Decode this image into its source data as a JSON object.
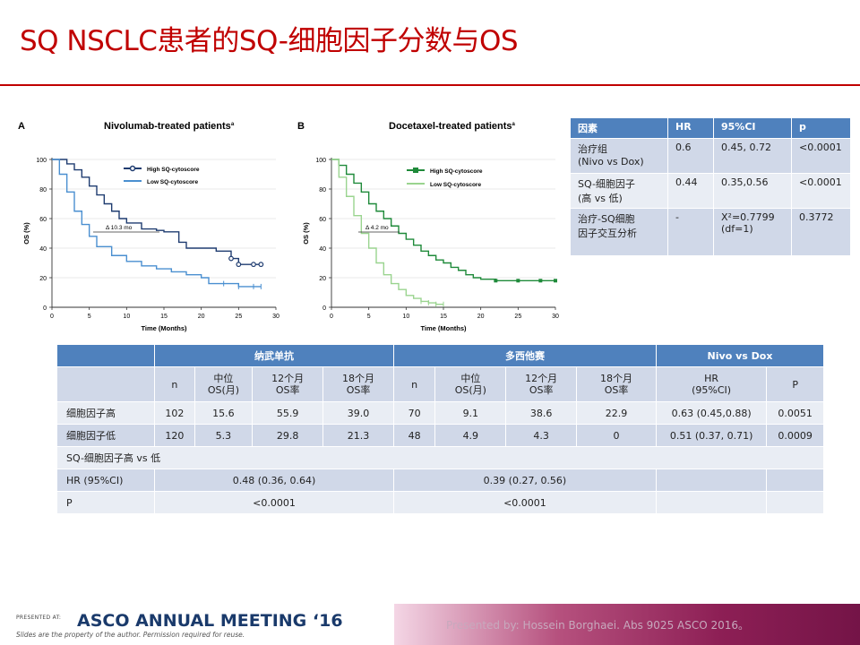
{
  "title": "SQ NSCLC患者的SQ-细胞因子分数与OS",
  "panel_a": {
    "letter": "A",
    "title": "Nivolumab-treated patients",
    "title_sup": "a",
    "legend_high": "High SQ-cytoscore",
    "legend_low": "Low SQ-cytoscore",
    "delta": "Δ 10.3 mo",
    "ylabel": "OS (%)",
    "xlabel": "Time (Months)",
    "yticks": [
      "100",
      "80",
      "60",
      "40",
      "20",
      "0"
    ],
    "xticks": [
      "0",
      "5",
      "10",
      "15",
      "20",
      "25",
      "30"
    ],
    "high_color": "#1f3c70",
    "low_color": "#4a8fd0"
  },
  "panel_b": {
    "letter": "B",
    "title": "Docetaxel-treated patients",
    "title_sup": "a",
    "legend_high": "High SQ-cytoscore",
    "legend_low": "Low SQ-cytoscore",
    "delta": "Δ 4.2 mo",
    "ylabel": "OS (%)",
    "xlabel": "Time (Months)",
    "yticks": [
      "100",
      "80",
      "60",
      "40",
      "20",
      "0"
    ],
    "xticks": [
      "0",
      "5",
      "10",
      "15",
      "20",
      "25",
      "30"
    ],
    "high_color": "#1f8a3a",
    "low_color": "#9ad48f"
  },
  "chart_data": [
    {
      "type": "line",
      "title": "Nivolumab-treated patients",
      "xlabel": "Time (Months)",
      "ylabel": "OS (%)",
      "xlim": [
        0,
        30
      ],
      "ylim": [
        0,
        100
      ],
      "series": [
        {
          "name": "High SQ-cytoscore",
          "x": [
            0,
            2,
            3,
            4,
            5,
            6,
            7,
            8,
            9,
            10,
            12,
            14,
            15,
            17,
            18,
            20,
            22,
            24,
            25,
            27,
            28
          ],
          "y": [
            100,
            97,
            93,
            88,
            82,
            76,
            70,
            65,
            60,
            57,
            53,
            52,
            51,
            44,
            40,
            40,
            38,
            33,
            29,
            29,
            29
          ]
        },
        {
          "name": "Low SQ-cytoscore",
          "x": [
            0,
            1,
            2,
            3,
            4,
            5,
            6,
            8,
            10,
            12,
            14,
            16,
            18,
            20,
            21,
            23,
            25,
            27,
            28
          ],
          "y": [
            100,
            90,
            78,
            65,
            56,
            48,
            41,
            35,
            31,
            28,
            26,
            24,
            22,
            20,
            16,
            16,
            14,
            14,
            14
          ]
        }
      ]
    },
    {
      "type": "line",
      "title": "Docetaxel-treated patients",
      "xlabel": "Time (Months)",
      "ylabel": "OS (%)",
      "xlim": [
        0,
        30
      ],
      "ylim": [
        0,
        100
      ],
      "series": [
        {
          "name": "High SQ-cytoscore",
          "x": [
            0,
            1,
            2,
            3,
            4,
            5,
            6,
            7,
            8,
            9,
            10,
            11,
            12,
            13,
            14,
            15,
            16,
            17,
            18,
            19,
            20,
            22,
            25,
            28,
            30
          ],
          "y": [
            100,
            96,
            90,
            84,
            78,
            70,
            65,
            60,
            55,
            50,
            46,
            42,
            38,
            35,
            32,
            30,
            27,
            25,
            22,
            20,
            19,
            18,
            18,
            18,
            18
          ]
        },
        {
          "name": "Low SQ-cytoscore",
          "x": [
            0,
            1,
            2,
            3,
            4,
            5,
            6,
            7,
            8,
            9,
            10,
            11,
            12,
            13,
            14,
            15
          ],
          "y": [
            100,
            88,
            75,
            62,
            50,
            40,
            30,
            22,
            16,
            12,
            8,
            6,
            4,
            3,
            2,
            2
          ]
        }
      ]
    }
  ],
  "right_table": {
    "headers": [
      "因素",
      "HR",
      "95%CI",
      "p"
    ],
    "rows": [
      {
        "factor": "治疗组\n(Nivo vs Dox)",
        "hr": "0.6",
        "ci": "0.45, 0.72",
        "p": "<0.0001"
      },
      {
        "factor": "SQ-细胞因子\n(高 vs 低)",
        "hr": "0.44",
        "ci": "0.35,0.56",
        "p": "<0.0001"
      },
      {
        "factor": "治疗-SQ细胞\n因子交互分析",
        "hr": "-",
        "ci": "X²=0.7799\n(df=1)",
        "p": "0.3772"
      }
    ]
  },
  "bottom_table": {
    "group_headers": [
      "纳武单抗",
      "多西他赛",
      "Nivo vs Dox"
    ],
    "sub_headers": [
      "n",
      "中位\nOS(月)",
      "12个月\nOS率",
      "18个月\nOS率",
      "n",
      "中位\nOS(月)",
      "12个月\nOS率",
      "18个月\nOS率",
      "HR\n(95%CI)",
      "P"
    ],
    "rows": [
      {
        "label": "细胞因子高",
        "cells": [
          "102",
          "15.6",
          "55.9",
          "39.0",
          "70",
          "9.1",
          "38.6",
          "22.9",
          "0.63 (0.45,0.88)",
          "0.0051"
        ]
      },
      {
        "label": "细胞因子低",
        "cells": [
          "120",
          "5.3",
          "29.8",
          "21.3",
          "48",
          "4.9",
          "4.3",
          "0",
          "0.51 (0.37, 0.71)",
          "0.0009"
        ]
      }
    ],
    "section_label": "SQ-细胞因子高 vs 低",
    "hr_row": {
      "label": "HR (95%CI)",
      "nivo": "0.48 (0.36, 0.64)",
      "dox": "0.39 (0.27, 0.56)"
    },
    "p_row": {
      "label": "P",
      "nivo": "<0.0001",
      "dox": "<0.0001"
    }
  },
  "footer": {
    "presented_at": "PRESENTED AT:",
    "meeting": "ASCO ANNUAL MEETING ‘16",
    "note": "Slides are the property of the author. Permission required for reuse.",
    "presenter": "Presented by: Hossein Borghaei. Abs 9025 ASCO 2016。"
  }
}
